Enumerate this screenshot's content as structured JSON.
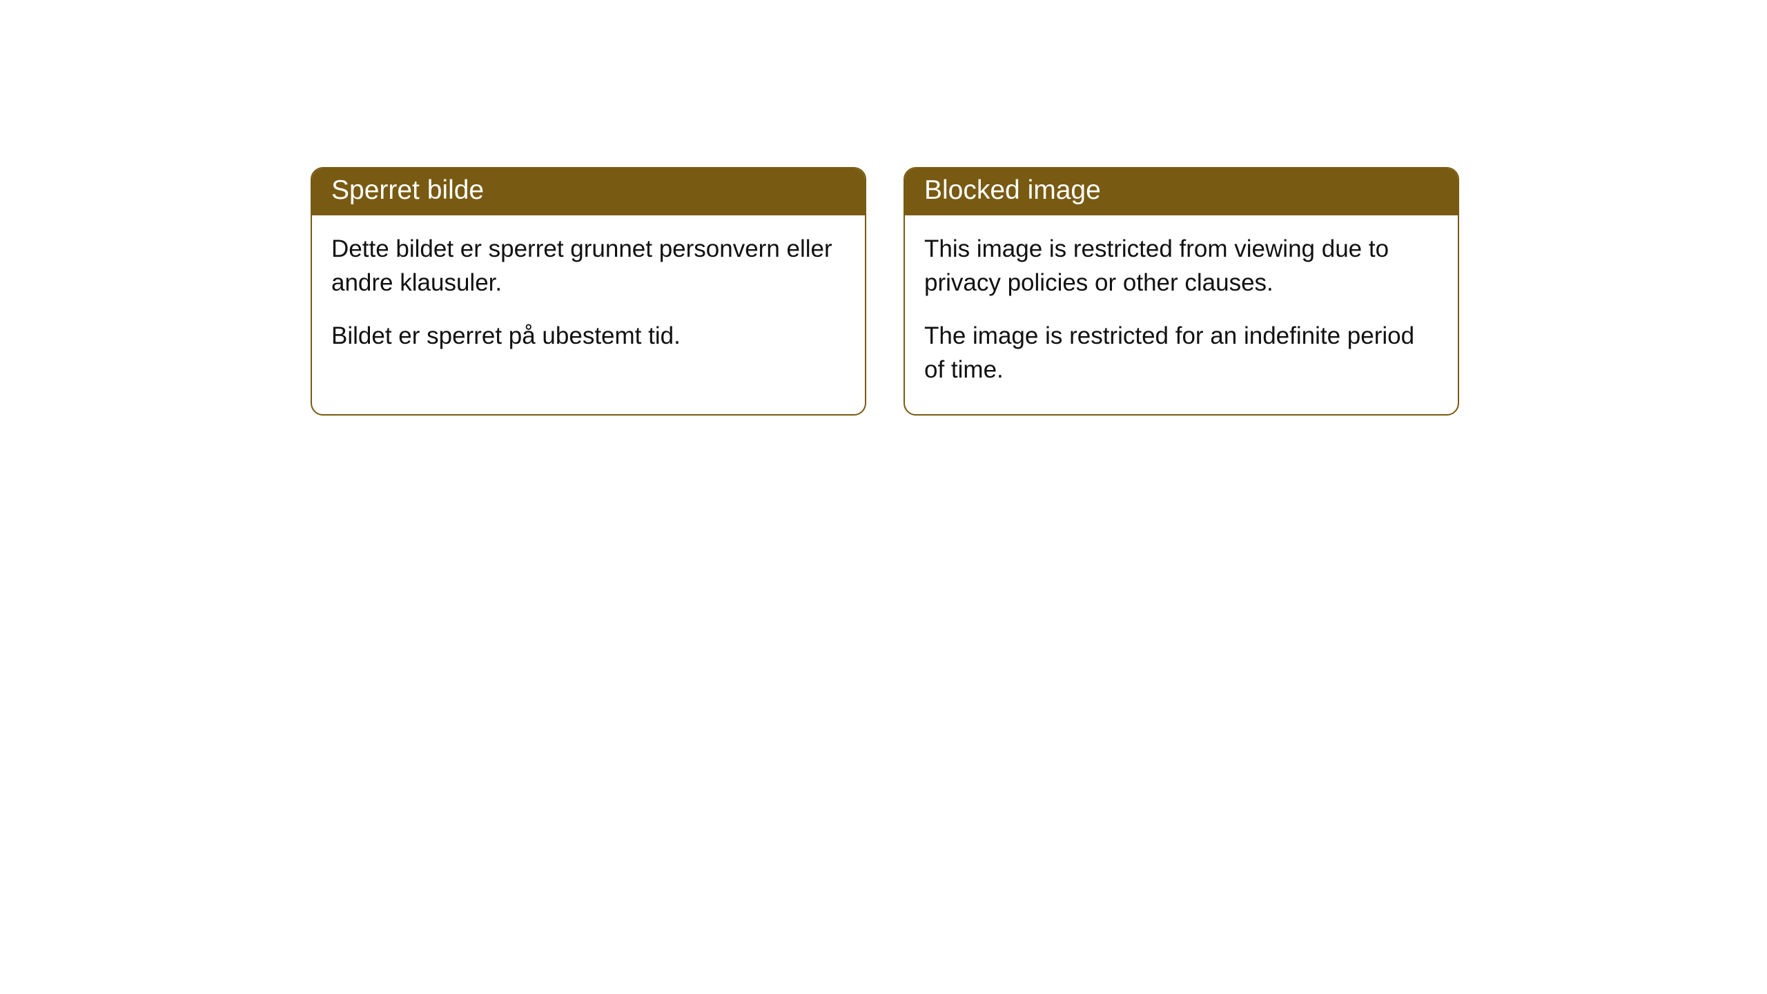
{
  "cards": [
    {
      "header": "Sperret bilde",
      "para1": "Dette bildet er sperret grunnet personvern eller andre klausuler.",
      "para2": "Bildet er sperret på ubestemt tid."
    },
    {
      "header": "Blocked image",
      "para1": "This image is restricted from viewing due to privacy policies or other clauses.",
      "para2": "The image is restricted for an indefinite period of time."
    }
  ],
  "style": {
    "header_bg_color": "#785a12",
    "header_text_color": "#ffffff",
    "border_color": "#785a12",
    "body_text_color": "#111111",
    "background_color": "#ffffff",
    "border_radius": 18,
    "header_fontsize": 39,
    "body_fontsize": 35
  }
}
